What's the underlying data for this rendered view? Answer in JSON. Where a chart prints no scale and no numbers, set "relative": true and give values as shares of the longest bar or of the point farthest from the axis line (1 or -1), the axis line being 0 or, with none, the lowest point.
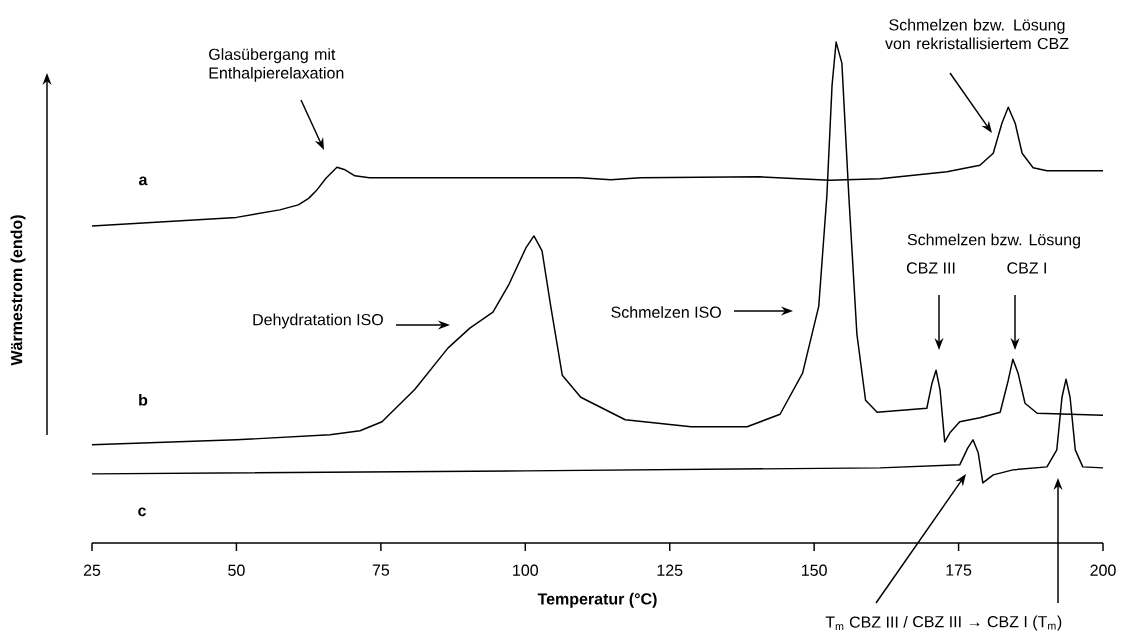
{
  "chart_data": {
    "type": "line",
    "relative": true,
    "xlabel": "Temperatur (°C)",
    "ylabel": "Wärmestrom (endo)",
    "xlim": [
      25,
      200
    ],
    "xticks": [
      25,
      50,
      75,
      100,
      125,
      150,
      175,
      200
    ],
    "marker": "none",
    "line_style": "solid",
    "annotations": [
      "Glasübergang mit Enthalpierelaxation",
      "Schmelzen bzw. Lösung von rekristallisiertem CBZ",
      "Dehydratation ISO",
      "Schmelzen ISO",
      "Schmelzen bzw. Lösung",
      "CBZ III",
      "CBZ I",
      "T$_{m}$ CBZ III /",
      "CBZ III  →  CBZ I (T$_{m}$)"
    ],
    "series": [
      {
        "name": "a",
        "color": "#000000",
        "x": [
          25,
          50,
          57.5,
          60.7,
          62.5,
          63.8,
          65.5,
          67.4,
          68.8,
          70.5,
          73,
          95.6,
          109.5,
          114.8,
          119.9,
          140.6,
          152.7,
          161.4,
          173,
          178.7,
          181,
          182.5,
          183.6,
          184.8,
          186,
          187.9,
          190.3,
          200
        ],
        "values": [
          0.633,
          0.65,
          0.665,
          0.675,
          0.688,
          0.703,
          0.728,
          0.75,
          0.745,
          0.733,
          0.729,
          0.729,
          0.729,
          0.725,
          0.729,
          0.731,
          0.724,
          0.727,
          0.741,
          0.754,
          0.778,
          0.838,
          0.87,
          0.838,
          0.778,
          0.749,
          0.743,
          0.743
        ]
      },
      {
        "name": "b",
        "color": "#000000",
        "x": [
          25,
          50,
          66.2,
          71.4,
          75.2,
          80.9,
          86.6,
          90.4,
          94.4,
          97.2,
          100.1,
          101.5,
          102.9,
          104.4,
          106.4,
          109.6,
          117.3,
          128.7,
          138.4,
          144.1,
          148,
          150.8,
          152.2,
          153.1,
          153.8,
          154.8,
          156,
          157.4,
          158.9,
          160.9,
          169.5,
          170.4,
          171.1,
          171.8,
          172.6,
          173.5,
          175.2,
          178.7,
          182.2,
          183.6,
          184.4,
          185.3,
          186.5,
          188.6,
          200
        ],
        "values": [
          0.196,
          0.206,
          0.216,
          0.224,
          0.242,
          0.307,
          0.389,
          0.429,
          0.461,
          0.517,
          0.589,
          0.613,
          0.583,
          0.473,
          0.335,
          0.291,
          0.246,
          0.232,
          0.232,
          0.257,
          0.339,
          0.473,
          0.693,
          0.914,
          1.0,
          0.958,
          0.693,
          0.417,
          0.285,
          0.261,
          0.269,
          0.319,
          0.345,
          0.305,
          0.202,
          0.22,
          0.242,
          0.25,
          0.261,
          0.325,
          0.367,
          0.339,
          0.279,
          0.259,
          0.255
        ]
      },
      {
        "name": "c",
        "color": "#000000",
        "x": [
          25,
          100,
          161.4,
          175.2,
          176.6,
          177.5,
          178.4,
          179.2,
          181,
          184.4,
          190.3,
          192,
          192.9,
          193.6,
          194.3,
          195.2,
          196.5,
          200
        ],
        "values": [
          0.138,
          0.144,
          0.15,
          0.156,
          0.19,
          0.206,
          0.18,
          0.12,
          0.136,
          0.146,
          0.152,
          0.186,
          0.291,
          0.327,
          0.291,
          0.186,
          0.152,
          0.15
        ]
      }
    ]
  }
}
